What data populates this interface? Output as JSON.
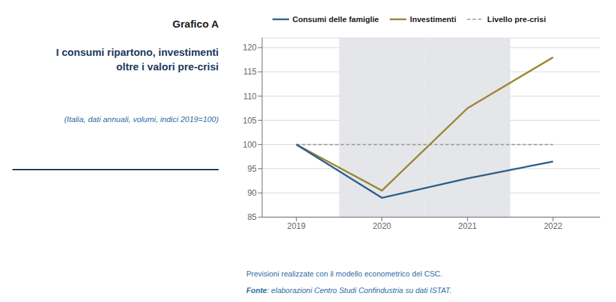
{
  "chart_data": {
    "type": "line",
    "annotations": [
      "Grafico A"
    ],
    "title": "I consumi ripartono, investimenti\noltre i valori pre-crisi",
    "subtitle": "(Italia, dati annuali, volumi, indici 2019=100)",
    "x": [
      2019,
      2020,
      2021,
      2022
    ],
    "series": [
      {
        "name": "Consumi delle famiglie",
        "color": "#2e5f8a",
        "values": [
          100,
          89.0,
          93.0,
          96.5
        ],
        "line_style": "solid"
      },
      {
        "name": "Investimenti",
        "color": "#9b8430",
        "values": [
          100,
          90.5,
          107.5,
          118.0
        ],
        "line_style": "solid"
      },
      {
        "name": "Livello pre-crisi",
        "color": "#999999",
        "values": [
          100,
          100,
          100,
          100
        ],
        "line_style": "dashed"
      }
    ],
    "shaded_regions": [
      {
        "x": [
          2019.5,
          2020.5
        ],
        "color": "#e4e6ea"
      },
      {
        "x": [
          2020.5,
          2021.5
        ],
        "color": "#e4e6ea"
      }
    ],
    "xlim": [
      2018.6,
      2022.55
    ],
    "xticks": [
      2019,
      2020,
      2021,
      2022
    ],
    "ylim": [
      85,
      122
    ],
    "yticks": [
      85,
      90,
      95,
      100,
      105,
      110,
      115,
      120
    ],
    "grid": true,
    "legend": "top",
    "footnotes": [
      "Previsioni realizzate con il modello econometrico del CSC.",
      "Fonte: elaborazioni Centro Studi Confindustria su dati ISTAT."
    ]
  }
}
